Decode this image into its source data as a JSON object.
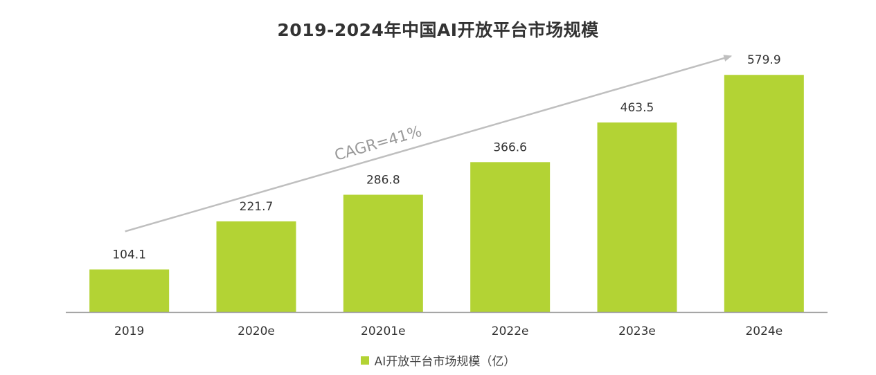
{
  "chart_data": {
    "type": "bar",
    "title": "2019-2024年中国AI开放平台市场规模",
    "categories": [
      "2019",
      "2020e",
      "20201e",
      "2022e",
      "2023e",
      "2024e"
    ],
    "series": [
      {
        "name": "AI开放平台市场规模（亿）",
        "values": [
          104.1,
          221.7,
          286.8,
          366.6,
          463.5,
          579.9
        ],
        "data_labels": [
          "104.1",
          "221.7",
          "286.8",
          "366.6",
          "463.5",
          "579.9"
        ],
        "color": "#b3d334"
      }
    ],
    "annotation": {
      "text": "CAGR=41%",
      "kind": "growth-arrow"
    },
    "ylim": [
      0,
      600
    ],
    "grid": false,
    "legend_position": "bottom-center",
    "axis_color": "#999999",
    "arrow_color": "#bfbfbf",
    "label_color": "#333333"
  }
}
